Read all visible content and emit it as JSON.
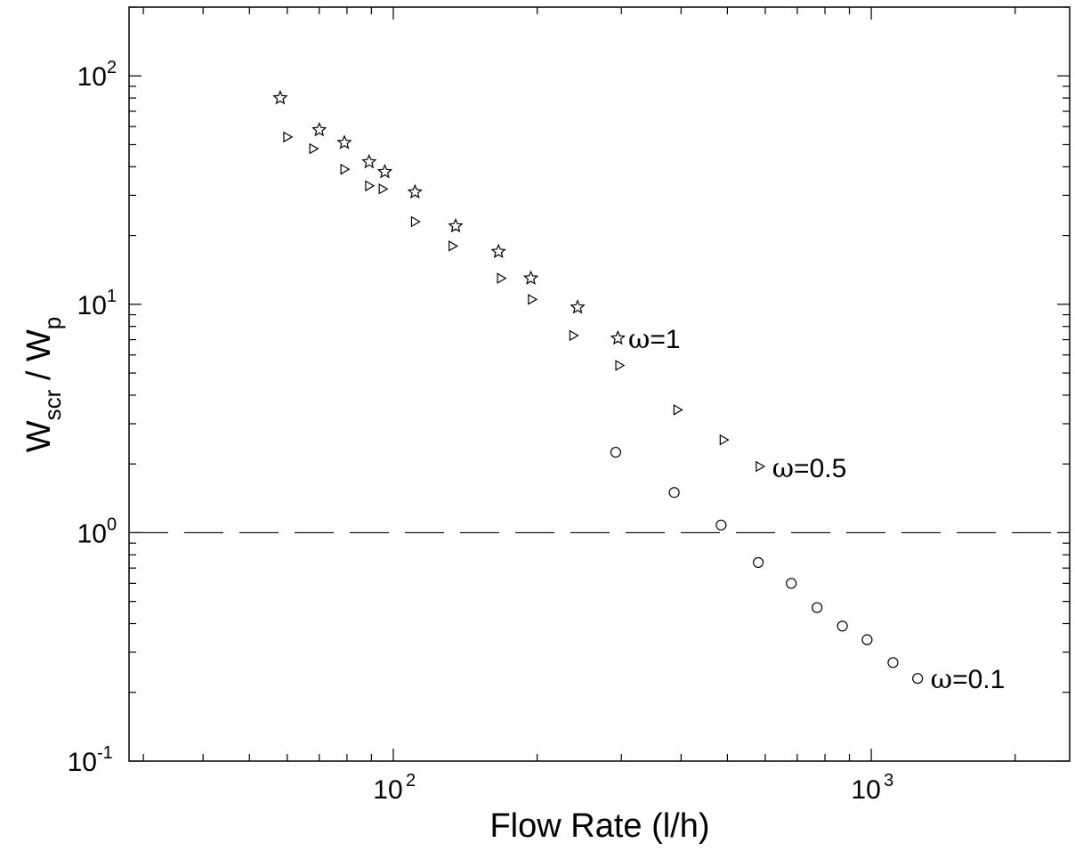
{
  "chart_data": {
    "type": "scatter",
    "title": "",
    "xlabel": "Flow Rate (l/h)",
    "ylabel": {
      "main1": "W",
      "sub1": "scr",
      "mid": " / W",
      "sub2": "p"
    },
    "xscale": "log",
    "yscale": "log",
    "xlim": [
      28,
      2600
    ],
    "ylim": [
      0.1,
      200
    ],
    "x_tick_labels": [
      {
        "value": 100,
        "base": "10",
        "exp": "2"
      },
      {
        "value": 1000,
        "base": "10",
        "exp": "3"
      }
    ],
    "y_tick_labels": [
      {
        "value": 0.1,
        "base": "10",
        "exp": "-1"
      },
      {
        "value": 1,
        "base": "10",
        "exp": "0"
      },
      {
        "value": 10,
        "base": "10",
        "exp": "1"
      },
      {
        "value": 100,
        "base": "10",
        "exp": "2"
      }
    ],
    "reference_line": {
      "y": 1,
      "style": "dashed"
    },
    "grid": false,
    "legend": "none",
    "series": [
      {
        "marker": "star",
        "annotation": {
          "symbol": "ω",
          "text": "=1",
          "x": 310,
          "y": 7.1
        },
        "x": [
          58,
          70,
          79,
          89,
          96,
          111,
          135,
          166,
          194,
          243,
          295
        ],
        "y": [
          80,
          58,
          51,
          42,
          38,
          31,
          22,
          17,
          13,
          9.7,
          7.1
        ]
      },
      {
        "marker": "triangle-right",
        "annotation": {
          "symbol": "ω",
          "text": "=0.5",
          "x": 620,
          "y": 1.93
        },
        "x": [
          60,
          68,
          79,
          89,
          95,
          111,
          133,
          168,
          195,
          238,
          297,
          393,
          491,
          584
        ],
        "y": [
          54,
          48,
          39,
          33,
          32,
          23,
          18,
          13,
          10.5,
          7.3,
          5.4,
          3.45,
          2.55,
          1.95
        ]
      },
      {
        "marker": "circle",
        "annotation": {
          "symbol": "ω",
          "text": "=0.1",
          "x": 1330,
          "y": 0.23
        },
        "x": [
          292,
          387,
          485,
          580,
          680,
          770,
          870,
          980,
          1110,
          1250
        ],
        "y": [
          2.25,
          1.5,
          1.08,
          0.74,
          0.6,
          0.47,
          0.39,
          0.34,
          0.27,
          0.23
        ]
      }
    ]
  }
}
